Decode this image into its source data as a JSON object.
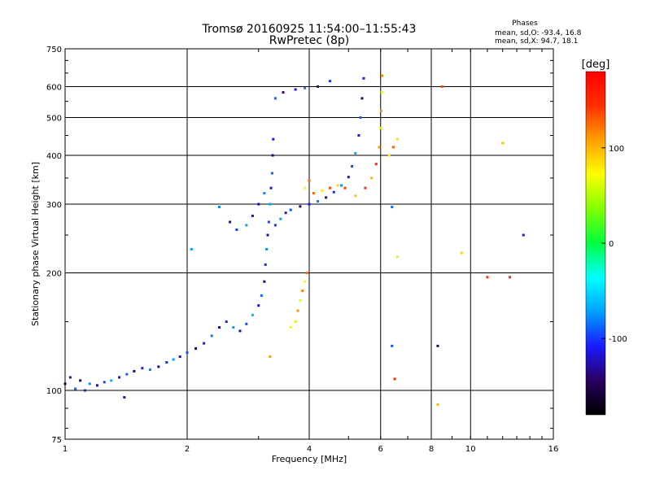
{
  "chart_data": {
    "type": "scatter",
    "title": "Tromsø 20160925 11:54:00–11:55:43",
    "subtitle": "RwPretec (8p)",
    "xlabel": "Frequency [MHz]",
    "ylabel": "Stationary phase Virtual Height [km]",
    "x_scale": "log",
    "y_scale": "log",
    "xlim": [
      1,
      16
    ],
    "ylim": [
      75,
      750
    ],
    "x_ticks": [
      1,
      2,
      4,
      6,
      8,
      10,
      16
    ],
    "x_tick_labels": [
      "1",
      "2",
      "4",
      "6",
      "8",
      "10",
      "16"
    ],
    "y_ticks": [
      75,
      100,
      200,
      300,
      400,
      500,
      600,
      750
    ],
    "y_tick_labels": [
      "75",
      "100",
      "200",
      "300",
      "400",
      "500",
      "600",
      "750"
    ],
    "grid": true,
    "stats": {
      "title": "Phases",
      "line_o": "mean, sd,O: -93.4, 16.8",
      "line_x": "mean, sd,X:  94.7, 18.1"
    },
    "colorbar": {
      "label": "[deg]",
      "range": [
        -180,
        180
      ],
      "ticks": [
        100,
        0,
        -100
      ],
      "tick_labels": [
        "100",
        "0",
        "-100"
      ],
      "colors": [
        "#000000",
        "#2a0060",
        "#1a1aff",
        "#00a0ff",
        "#00ffff",
        "#00ff40",
        "#80ff00",
        "#ffff00",
        "#ffa000",
        "#ff3000",
        "#ff0000"
      ]
    },
    "series": [
      {
        "mode": "O",
        "points": [
          [
            1.0,
            104
          ],
          [
            1.03,
            108
          ],
          [
            1.06,
            101
          ],
          [
            1.09,
            106
          ],
          [
            1.12,
            100
          ],
          [
            1.15,
            104
          ],
          [
            1.2,
            103
          ],
          [
            1.25,
            105
          ],
          [
            1.3,
            106
          ],
          [
            1.36,
            108
          ],
          [
            1.42,
            110
          ],
          [
            1.48,
            112
          ],
          [
            1.55,
            114
          ],
          [
            1.62,
            113
          ],
          [
            1.7,
            115
          ],
          [
            1.78,
            118
          ],
          [
            1.85,
            120
          ],
          [
            1.92,
            122
          ],
          [
            2.0,
            125
          ],
          [
            2.1,
            128
          ],
          [
            2.2,
            132
          ],
          [
            2.3,
            138
          ],
          [
            2.4,
            145
          ],
          [
            2.5,
            150
          ],
          [
            2.6,
            145
          ],
          [
            2.7,
            142
          ],
          [
            2.8,
            148
          ],
          [
            2.9,
            156
          ],
          [
            3.0,
            165
          ],
          [
            3.05,
            175
          ],
          [
            3.1,
            190
          ],
          [
            3.12,
            210
          ],
          [
            3.14,
            230
          ],
          [
            3.16,
            250
          ],
          [
            3.18,
            270
          ],
          [
            3.2,
            300
          ],
          [
            3.22,
            330
          ],
          [
            3.24,
            360
          ],
          [
            3.25,
            400
          ],
          [
            3.26,
            440
          ],
          [
            3.1,
            320
          ],
          [
            3.0,
            300
          ],
          [
            3.3,
            265
          ],
          [
            3.4,
            275
          ],
          [
            3.5,
            285
          ],
          [
            3.6,
            290
          ],
          [
            3.8,
            296
          ],
          [
            4.0,
            300
          ],
          [
            4.2,
            305
          ],
          [
            4.4,
            312
          ],
          [
            4.6,
            322
          ],
          [
            4.8,
            335
          ],
          [
            5.0,
            352
          ],
          [
            5.1,
            375
          ],
          [
            5.2,
            405
          ],
          [
            5.3,
            450
          ],
          [
            5.35,
            500
          ],
          [
            5.4,
            560
          ],
          [
            5.45,
            630
          ],
          [
            2.4,
            295
          ],
          [
            2.55,
            270
          ],
          [
            2.65,
            258
          ],
          [
            2.8,
            265
          ],
          [
            2.9,
            280
          ],
          [
            3.3,
            560
          ],
          [
            3.45,
            580
          ],
          [
            3.7,
            590
          ],
          [
            3.9,
            595
          ],
          [
            4.2,
            600
          ],
          [
            4.5,
            620
          ],
          [
            2.05,
            230
          ],
          [
            1.4,
            96
          ],
          [
            6.4,
            130
          ],
          [
            8.3,
            130
          ],
          [
            13.5,
            250
          ],
          [
            6.4,
            295
          ]
        ]
      },
      {
        "mode": "X",
        "points": [
          [
            3.7,
            150
          ],
          [
            3.75,
            160
          ],
          [
            3.8,
            170
          ],
          [
            3.85,
            180
          ],
          [
            3.9,
            190
          ],
          [
            3.95,
            200
          ],
          [
            3.6,
            145
          ],
          [
            4.1,
            320
          ],
          [
            4.3,
            325
          ],
          [
            4.5,
            330
          ],
          [
            4.7,
            335
          ],
          [
            4.9,
            330
          ],
          [
            5.2,
            315
          ],
          [
            5.5,
            330
          ],
          [
            5.7,
            350
          ],
          [
            5.85,
            380
          ],
          [
            5.95,
            420
          ],
          [
            6.0,
            470
          ],
          [
            6.02,
            520
          ],
          [
            6.04,
            580
          ],
          [
            6.05,
            640
          ],
          [
            3.9,
            330
          ],
          [
            4.0,
            345
          ],
          [
            6.3,
            400
          ],
          [
            6.45,
            420
          ],
          [
            6.6,
            440
          ],
          [
            8.5,
            600
          ],
          [
            9.5,
            225
          ],
          [
            11.0,
            195
          ],
          [
            12.0,
            430
          ],
          [
            12.5,
            195
          ],
          [
            8.3,
            92
          ],
          [
            6.5,
            107
          ],
          [
            3.2,
            122
          ],
          [
            6.6,
            220
          ]
        ]
      }
    ]
  }
}
